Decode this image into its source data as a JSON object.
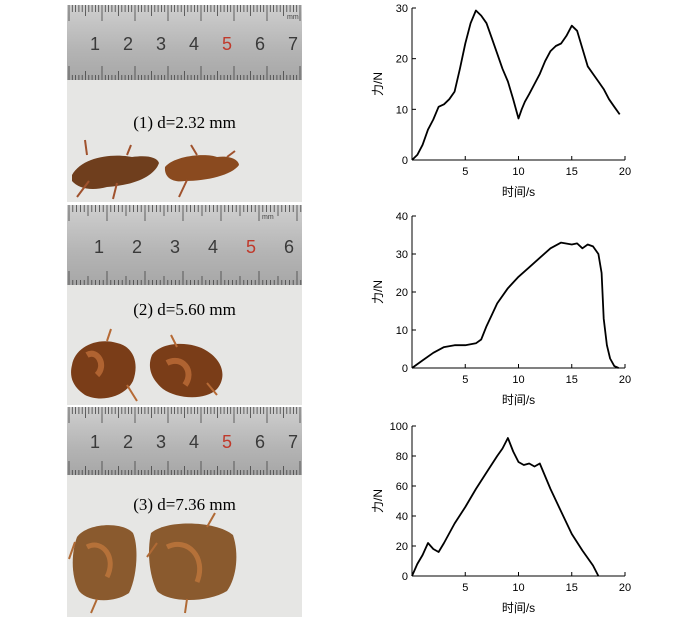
{
  "photos": [
    {
      "caption": "(1) d=2.32 mm",
      "ruler_labels": [
        "1",
        "2",
        "3",
        "4",
        "5",
        "6",
        "7"
      ],
      "ruler_unit_text": "mm"
    },
    {
      "caption": "(2) d=5.60 mm",
      "ruler_labels": [
        "1",
        "2",
        "3",
        "4",
        "5",
        "6"
      ],
      "ruler_unit_text": "mm"
    },
    {
      "caption": "(3) d=7.36 mm",
      "ruler_labels": [
        "1",
        "2",
        "3",
        "4",
        "5",
        "6",
        "7"
      ],
      "ruler_unit_text": ""
    }
  ],
  "colors": {
    "ruler_digit": "#3a3a3a",
    "ruler_digit_red": "#c0392b",
    "root": "#8a4a1f",
    "line": "#000000"
  },
  "chart_data": [
    {
      "type": "line",
      "xlabel": "时间/s",
      "ylabel": "力/N",
      "xlim": [
        0,
        20
      ],
      "ylim": [
        0,
        30
      ],
      "xticks": [
        5,
        10,
        15,
        20
      ],
      "yticks": [
        0,
        10,
        20,
        30
      ],
      "series": [
        {
          "x": [
            0,
            0.5,
            1,
            1.5,
            2,
            2.5,
            3,
            3.5,
            4,
            4.5,
            5,
            5.5,
            6,
            6.5,
            7,
            7.5,
            8,
            8.5,
            9,
            9.5,
            10,
            10.3,
            10.6,
            11,
            11.5,
            12,
            12.5,
            13,
            13.5,
            14,
            14.5,
            15,
            15.5,
            16,
            16.5,
            17,
            17.5,
            18,
            18.5,
            19,
            19.5
          ],
          "y": [
            0,
            1,
            3,
            6,
            8,
            10.5,
            11,
            12,
            13.5,
            18,
            23,
            27,
            29.5,
            28.5,
            27,
            24,
            21,
            18,
            15.5,
            12,
            8.2,
            10,
            11.5,
            13,
            15,
            17,
            19.5,
            21.5,
            22.5,
            23,
            24.5,
            26.5,
            25.5,
            22,
            18.5,
            17,
            15.5,
            14,
            12,
            10.5,
            9
          ]
        }
      ]
    },
    {
      "type": "line",
      "xlabel": "时间/s",
      "ylabel": "力/N",
      "xlim": [
        0,
        20
      ],
      "ylim": [
        0,
        40
      ],
      "xticks": [
        5,
        10,
        15,
        20
      ],
      "yticks": [
        0,
        10,
        20,
        30,
        40
      ],
      "series": [
        {
          "x": [
            0,
            1,
            2,
            3,
            4,
            5,
            6,
            6.5,
            7,
            7.5,
            8,
            9,
            10,
            11,
            12,
            13,
            14,
            15,
            15.5,
            16,
            16.5,
            17,
            17.5,
            17.8,
            18,
            18.3,
            18.6,
            19,
            19.4
          ],
          "y": [
            0,
            2,
            4,
            5.5,
            6,
            6,
            6.5,
            7.5,
            11,
            14,
            17,
            21,
            24,
            26.5,
            29,
            31.5,
            33,
            32.5,
            32.8,
            31.5,
            32.5,
            32,
            30,
            25,
            13,
            6,
            2.5,
            0.5,
            0
          ]
        }
      ]
    },
    {
      "type": "line",
      "xlabel": "时间/s",
      "ylabel": "力/N",
      "xlim": [
        0,
        20
      ],
      "ylim": [
        0,
        100
      ],
      "xticks": [
        5,
        10,
        15,
        20
      ],
      "yticks": [
        0,
        20,
        40,
        60,
        80,
        100
      ],
      "series": [
        {
          "x": [
            0,
            0.5,
            1,
            1.5,
            2,
            2.5,
            3,
            4,
            5,
            6,
            7,
            8,
            8.5,
            9,
            9.5,
            10,
            10.5,
            11,
            11.5,
            12,
            13,
            14,
            15,
            16,
            17,
            17.5
          ],
          "y": [
            0,
            8,
            14,
            22,
            18,
            16,
            22,
            35,
            46,
            58,
            69,
            80,
            85,
            92,
            83,
            76,
            74,
            75,
            73,
            75,
            58,
            43,
            28,
            17,
            7,
            0
          ]
        }
      ]
    }
  ]
}
